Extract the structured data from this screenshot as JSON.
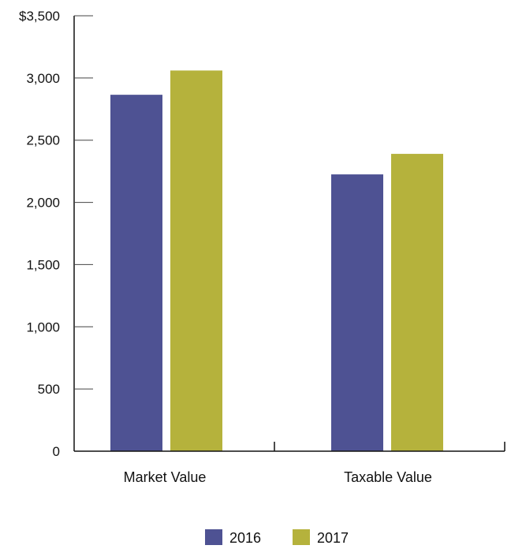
{
  "chart_data": {
    "type": "bar",
    "title": "",
    "xlabel": "",
    "ylabel": "",
    "categories": [
      "Market Value",
      "Taxable Value"
    ],
    "series": [
      {
        "name": "2016",
        "color": "#4e5293",
        "values": [
          2865,
          2225
        ]
      },
      {
        "name": "2017",
        "color": "#b5b23c",
        "values": [
          3060,
          2390
        ]
      }
    ],
    "ylim": [
      0,
      3500
    ],
    "y_ticks": [
      0,
      500,
      1000,
      1500,
      2000,
      2500,
      3000,
      3500
    ],
    "y_tick_labels": [
      "0",
      "500",
      "1,000",
      "1,500",
      "2,000",
      "2,500",
      "3,000",
      "$3,500"
    ],
    "grid": false,
    "legend_position": "bottom-center"
  }
}
